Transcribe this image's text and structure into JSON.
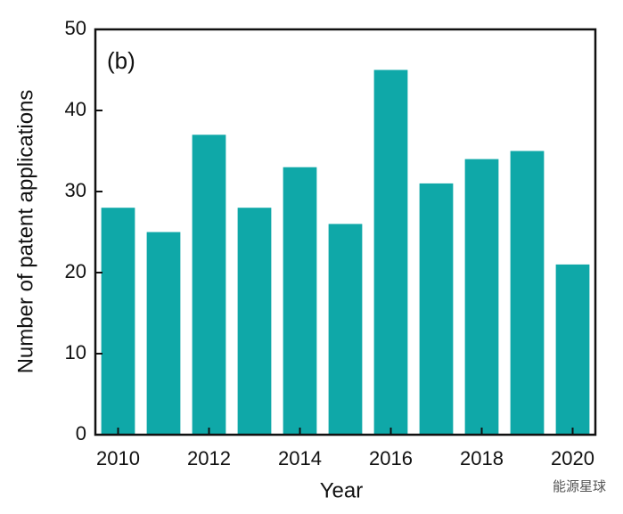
{
  "chart_data": {
    "type": "bar",
    "annotation": "(b)",
    "xlabel": "Year",
    "ylabel": "Number of  patent applications",
    "x": [
      2010,
      2011,
      2012,
      2013,
      2014,
      2015,
      2016,
      2017,
      2018,
      2019,
      2020
    ],
    "values": [
      28,
      25,
      37,
      28,
      33,
      26,
      45,
      31,
      34,
      35,
      21
    ],
    "color": "#0fa8a8",
    "xlim": [
      2009.5,
      2020.5
    ],
    "xticks": [
      2010,
      2012,
      2014,
      2016,
      2018,
      2020
    ],
    "ylim": [
      0,
      50
    ],
    "yticks": [
      0,
      10,
      20,
      30,
      40,
      50
    ],
    "grid": false,
    "watermark": "能源星球"
  }
}
